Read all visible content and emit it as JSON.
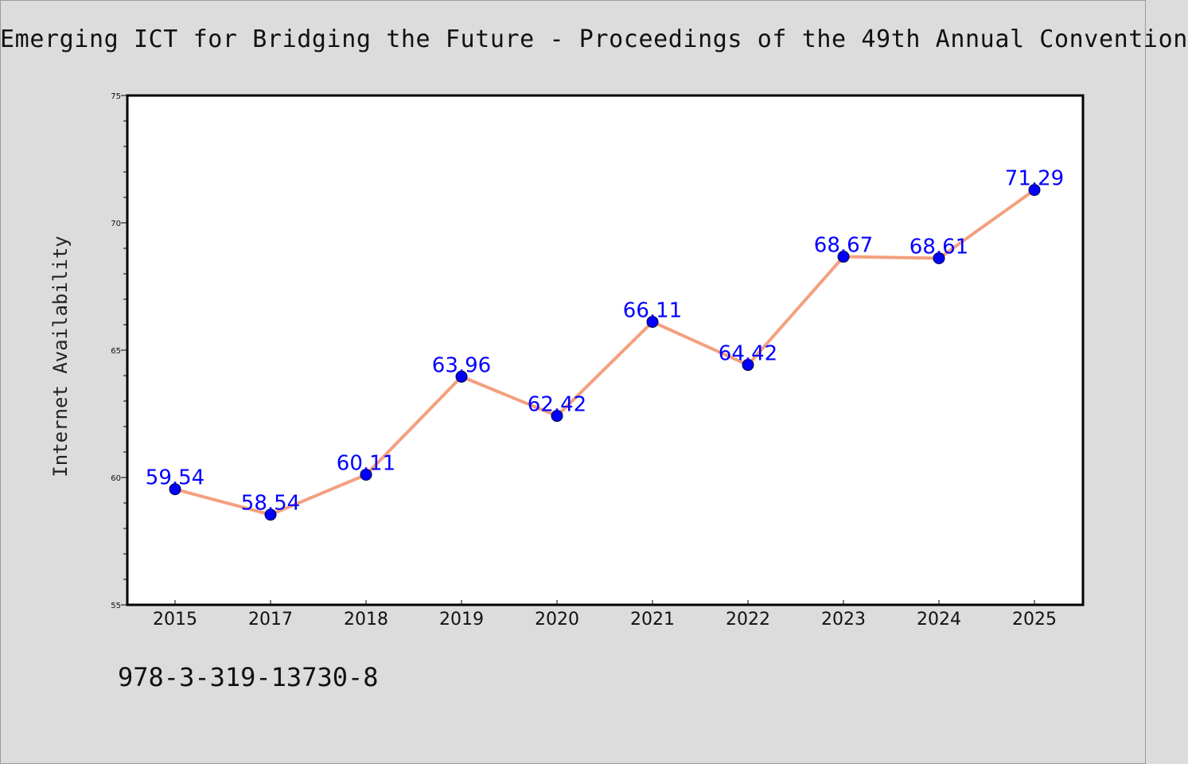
{
  "header": {
    "title": "Emerging ICT for Bridging the Future - Proceedings of the 49th Annual Convention"
  },
  "footer": {
    "isbn": "978-3-319-13730-8"
  },
  "colors": {
    "background": "#dcdcdc",
    "plot_background": "#ffffff",
    "line": "#f4a07e",
    "marker": "#0000ff",
    "data_label": "#0000ff"
  },
  "chart_data": {
    "type": "line",
    "title": "Emerging ICT for Bridging the Future - Proceedings of the 49th Annual Convention",
    "xlabel": "",
    "ylabel": "Internet Availability",
    "categories": [
      "2015",
      "2017",
      "2018",
      "2019",
      "2020",
      "2021",
      "2022",
      "2023",
      "2024",
      "2025"
    ],
    "series": [
      {
        "values": [
          59.54,
          58.54,
          60.11,
          63.96,
          62.42,
          66.11,
          64.42,
          68.67,
          68.61,
          71.29
        ],
        "labels": [
          "59.54",
          "58.54",
          "60.11",
          "63.96",
          "62.42",
          "66.11",
          "64.42",
          "68.67",
          "68.61",
          "71.29"
        ]
      }
    ],
    "ylim": [
      55,
      75
    ],
    "yticks": [
      55,
      60,
      65,
      70,
      75
    ],
    "grid": false,
    "legend": "none"
  }
}
